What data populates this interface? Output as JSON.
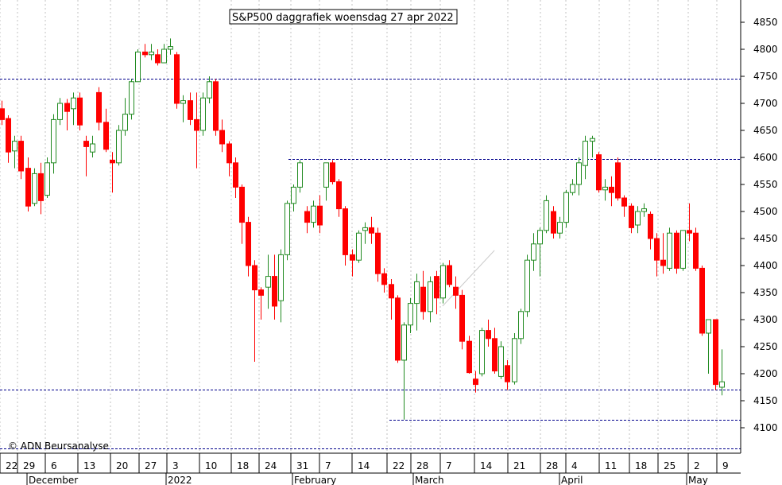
{
  "chart_data": {
    "type": "candlestick",
    "title": "S&P500 daggrafiek woensdag 27 apr 2022",
    "copyright": "© ADN Beursanalyse",
    "ylim": [
      4060,
      4880
    ],
    "y_ticks": [
      4100,
      4150,
      4200,
      4250,
      4300,
      4350,
      4400,
      4450,
      4500,
      4550,
      4600,
      4650,
      4700,
      4750,
      4800,
      4850
    ],
    "x_day_labels": [
      "22",
      "29",
      "6",
      "13",
      "20",
      "27",
      "3",
      "10",
      "18",
      "24",
      "31",
      "7",
      "14",
      "22",
      "28",
      "7",
      "14",
      "21",
      "28",
      "4",
      "11",
      "18",
      "25",
      "2",
      "9"
    ],
    "x_month_labels": [
      "December",
      "2022",
      "February",
      "March",
      "April",
      "May"
    ],
    "grid": true,
    "colors": {
      "up": "#228b22",
      "down": "#ff0000",
      "grid": "#c0c0c0",
      "level": "#00008b"
    },
    "level_lines": [
      {
        "value": 4746
      },
      {
        "value": 4597
      },
      {
        "value": 4170
      },
      {
        "value": 4115
      },
      {
        "value": 4062
      }
    ],
    "trendline": {
      "from": [
        68,
        4325
      ],
      "to": [
        76,
        4428
      ]
    },
    "candles": [
      [
        4690,
        4705,
        4660,
        4670
      ],
      [
        4672,
        4678,
        4590,
        4610
      ],
      [
        4612,
        4640,
        4580,
        4630
      ],
      [
        4630,
        4640,
        4560,
        4575
      ],
      [
        4580,
        4600,
        4500,
        4510
      ],
      [
        4515,
        4580,
        4510,
        4570
      ],
      [
        4570,
        4590,
        4495,
        4520
      ],
      [
        4530,
        4600,
        4525,
        4590
      ],
      [
        4590,
        4680,
        4570,
        4670
      ],
      [
        4670,
        4710,
        4660,
        4700
      ],
      [
        4700,
        4708,
        4650,
        4685
      ],
      [
        4690,
        4720,
        4660,
        4710
      ],
      [
        4710,
        4720,
        4650,
        4660
      ],
      [
        4630,
        4640,
        4565,
        4620
      ],
      [
        4610,
        4640,
        4600,
        4625
      ],
      [
        4720,
        4730,
        4650,
        4665
      ],
      [
        4665,
        4690,
        4610,
        4615
      ],
      [
        4595,
        4610,
        4535,
        4590
      ],
      [
        4590,
        4660,
        4585,
        4650
      ],
      [
        4650,
        4710,
        4640,
        4680
      ],
      [
        4680,
        4745,
        4670,
        4740
      ],
      [
        4740,
        4800,
        4740,
        4795
      ],
      [
        4795,
        4810,
        4785,
        4790
      ],
      [
        4790,
        4810,
        4780,
        4795
      ],
      [
        4790,
        4800,
        4770,
        4775
      ],
      [
        4775,
        4810,
        4775,
        4800
      ],
      [
        4800,
        4820,
        4790,
        4805
      ],
      [
        4790,
        4795,
        4690,
        4700
      ],
      [
        4700,
        4715,
        4665,
        4705
      ],
      [
        4705,
        4720,
        4660,
        4670
      ],
      [
        4670,
        4720,
        4580,
        4650
      ],
      [
        4650,
        4720,
        4640,
        4710
      ],
      [
        4710,
        4750,
        4700,
        4740
      ],
      [
        4740,
        4745,
        4640,
        4650
      ],
      [
        4650,
        4670,
        4610,
        4625
      ],
      [
        4625,
        4630,
        4565,
        4590
      ],
      [
        4590,
        4600,
        4525,
        4545
      ],
      [
        4545,
        4550,
        4440,
        4480
      ],
      [
        4480,
        4490,
        4380,
        4400
      ],
      [
        4400,
        4410,
        4222,
        4355
      ],
      [
        4355,
        4360,
        4300,
        4345
      ],
      [
        4360,
        4420,
        4320,
        4380
      ],
      [
        4380,
        4420,
        4300,
        4325
      ],
      [
        4335,
        4430,
        4295,
        4420
      ],
      [
        4420,
        4520,
        4410,
        4515
      ],
      [
        4515,
        4550,
        4500,
        4545
      ],
      [
        4545,
        4595,
        4535,
        4590
      ],
      [
        4500,
        4510,
        4460,
        4480
      ],
      [
        4480,
        4520,
        4470,
        4510
      ],
      [
        4510,
        4530,
        4460,
        4475
      ],
      [
        4545,
        4590,
        4520,
        4590
      ],
      [
        4590,
        4595,
        4550,
        4555
      ],
      [
        4555,
        4560,
        4490,
        4505
      ],
      [
        4505,
        4510,
        4400,
        4420
      ],
      [
        4420,
        4430,
        4380,
        4410
      ],
      [
        4410,
        4465,
        4405,
        4460
      ],
      [
        4465,
        4480,
        4440,
        4470
      ],
      [
        4470,
        4490,
        4440,
        4460
      ],
      [
        4460,
        4470,
        4370,
        4385
      ],
      [
        4385,
        4395,
        4350,
        4365
      ],
      [
        4365,
        4375,
        4300,
        4340
      ],
      [
        4340,
        4345,
        4220,
        4225
      ],
      [
        4225,
        4295,
        4115,
        4290
      ],
      [
        4290,
        4340,
        4275,
        4330
      ],
      [
        4330,
        4385,
        4280,
        4370
      ],
      [
        4360,
        4390,
        4300,
        4315
      ],
      [
        4315,
        4380,
        4295,
        4370
      ],
      [
        4380,
        4390,
        4310,
        4340
      ],
      [
        4340,
        4405,
        4330,
        4400
      ],
      [
        4400,
        4410,
        4360,
        4365
      ],
      [
        4360,
        4380,
        4320,
        4345
      ],
      [
        4345,
        4355,
        4245,
        4260
      ],
      [
        4260,
        4270,
        4200,
        4202
      ],
      [
        4190,
        4205,
        4165,
        4180
      ],
      [
        4200,
        4285,
        4195,
        4280
      ],
      [
        4280,
        4300,
        4250,
        4265
      ],
      [
        4265,
        4285,
        4200,
        4205
      ],
      [
        4195,
        4260,
        4190,
        4250
      ],
      [
        4215,
        4225,
        4170,
        4185
      ],
      [
        4185,
        4275,
        4180,
        4265
      ],
      [
        4265,
        4320,
        4255,
        4315
      ],
      [
        4315,
        4420,
        4305,
        4410
      ],
      [
        4410,
        4460,
        4390,
        4440
      ],
      [
        4440,
        4470,
        4380,
        4465
      ],
      [
        4465,
        4530,
        4460,
        4520
      ],
      [
        4500,
        4510,
        4450,
        4460
      ],
      [
        4460,
        4490,
        4450,
        4480
      ],
      [
        4480,
        4540,
        4470,
        4535
      ],
      [
        4535,
        4560,
        4530,
        4550
      ],
      [
        4550,
        4600,
        4530,
        4590
      ],
      [
        4585,
        4640,
        4560,
        4630
      ],
      [
        4630,
        4640,
        4600,
        4635
      ],
      [
        4605,
        4610,
        4535,
        4540
      ],
      [
        4540,
        4560,
        4520,
        4545
      ],
      [
        4545,
        4565,
        4510,
        4535
      ],
      [
        4590,
        4600,
        4520,
        4525
      ],
      [
        4525,
        4530,
        4490,
        4510
      ],
      [
        4510,
        4515,
        4460,
        4470
      ],
      [
        4475,
        4510,
        4460,
        4500
      ],
      [
        4500,
        4515,
        4490,
        4505
      ],
      [
        4495,
        4500,
        4430,
        4450
      ],
      [
        4450,
        4460,
        4380,
        4410
      ],
      [
        4410,
        4460,
        4385,
        4400
      ],
      [
        4395,
        4470,
        4390,
        4460
      ],
      [
        4460,
        4465,
        4385,
        4395
      ],
      [
        4395,
        4465,
        4390,
        4465
      ],
      [
        4465,
        4515,
        4445,
        4460
      ],
      [
        4460,
        4470,
        4390,
        4395
      ],
      [
        4395,
        4400,
        4270,
        4275
      ],
      [
        4275,
        4300,
        4200,
        4300
      ],
      [
        4300,
        4300,
        4170,
        4180
      ],
      [
        4175,
        4245,
        4160,
        4185
      ]
    ]
  }
}
